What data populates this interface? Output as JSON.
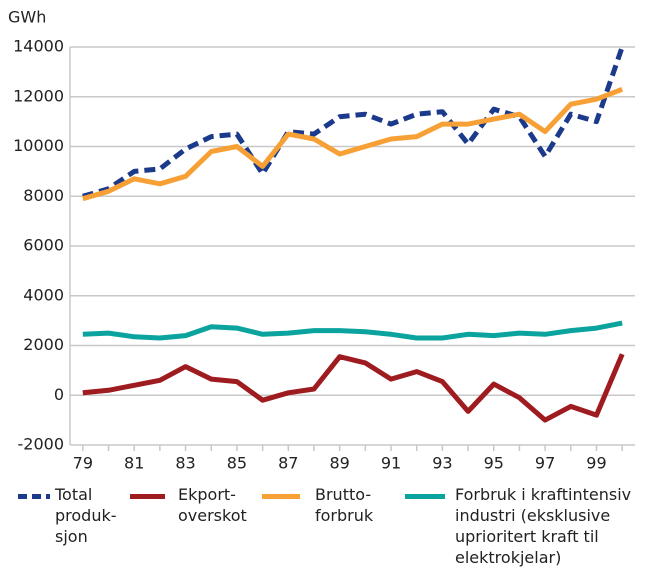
{
  "chart_data": {
    "type": "line",
    "y_label": "GWh",
    "categories": [
      "79",
      null,
      "81",
      null,
      "83",
      null,
      "85",
      null,
      "87",
      null,
      "89",
      null,
      "91",
      null,
      "93",
      null,
      "95",
      null,
      "97",
      null,
      "99",
      null
    ],
    "series": [
      {
        "name": "Total\nproduk-\nsjon",
        "color": "#1c3a8c",
        "line_style": "dashed",
        "values": [
          8000,
          8300,
          9000,
          9100,
          9900,
          10400,
          10500,
          8900,
          10600,
          10500,
          11200,
          11300,
          10900,
          11300,
          11400,
          10100,
          11500,
          11200,
          9600,
          11300,
          11000,
          14000
        ]
      },
      {
        "name": "Ekport-\noverskot",
        "color": "#9e1b20",
        "line_style": "solid",
        "values": [
          100,
          200,
          400,
          600,
          1150,
          650,
          550,
          -200,
          100,
          250,
          1550,
          1300,
          650,
          950,
          550,
          -650,
          450,
          -100,
          -1000,
          -450,
          -800,
          1650
        ]
      },
      {
        "name": "Brutto-\nforbruk",
        "color": "#f7a035",
        "line_style": "solid",
        "values": [
          7900,
          8200,
          8700,
          8500,
          8800,
          9800,
          10000,
          9200,
          10500,
          10300,
          9700,
          10000,
          10300,
          10400,
          10900,
          10900,
          11100,
          11300,
          10600,
          11700,
          11900,
          12300
        ]
      },
      {
        "name": "Forbruk i kraftintensiv\nindustri (eksklusive\nuprioritert kraft til\nelektrokjelar)",
        "color": "#0aa39e",
        "line_style": "solid",
        "values": [
          2450,
          2500,
          2350,
          2300,
          2400,
          2750,
          2700,
          2450,
          2500,
          2600,
          2600,
          2550,
          2450,
          2300,
          2300,
          2450,
          2400,
          2500,
          2450,
          2600,
          2700,
          2900
        ]
      }
    ],
    "ylim": [
      -2000,
      14000
    ],
    "yticks": [
      -2000,
      0,
      2000,
      4000,
      6000,
      8000,
      10000,
      12000,
      14000
    ],
    "grid": true
  }
}
